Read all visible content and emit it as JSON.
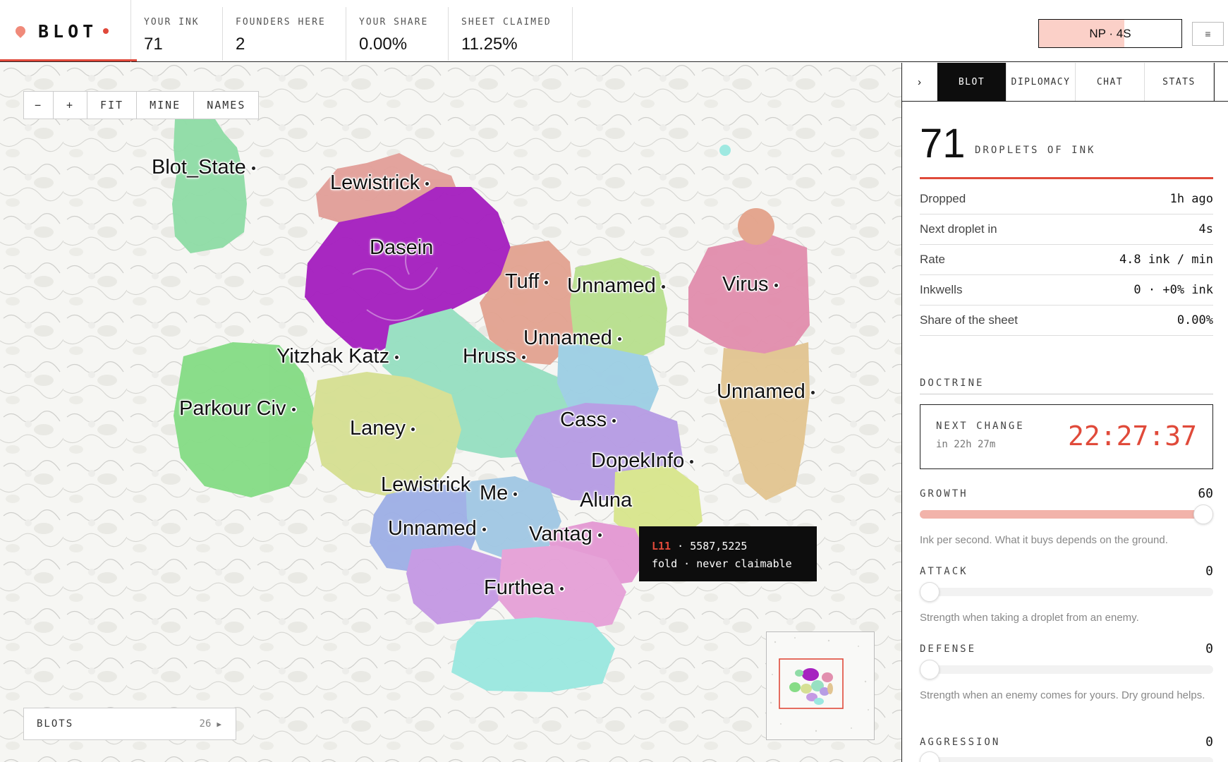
{
  "app": {
    "name": "BLOT"
  },
  "stats": [
    {
      "label": "YOUR INK",
      "value": "71"
    },
    {
      "label": "FOUNDERS HERE",
      "value": "2"
    },
    {
      "label": "YOUR SHARE",
      "value": "0.00%"
    },
    {
      "label": "SHEET CLAIMED",
      "value": "11.25%"
    }
  ],
  "np_button": {
    "label": "NP · 4S",
    "progress": 0.6
  },
  "menu_icon": "hamburger-icon",
  "map": {
    "controls": [
      "−",
      "+",
      "FIT",
      "MINE",
      "NAMES"
    ],
    "territories": [
      {
        "name": "Blot_State",
        "color": "#8fdca6"
      },
      {
        "name": "Lewistrick",
        "color": "#e2a09a"
      },
      {
        "name": "Dasein",
        "color": "#a622c0"
      },
      {
        "name": "Tuff",
        "color": "#e3a492"
      },
      {
        "name": "Unnamed",
        "color": "#b9e08f"
      },
      {
        "name": "Virus",
        "color": "#e28fae"
      },
      {
        "name": "Unnamed",
        "color": "#9ecfe4"
      },
      {
        "name": "Hruss",
        "color": "#98e0c2"
      },
      {
        "name": "Yitzhak Katz",
        "color": "#98e0c2"
      },
      {
        "name": "Unnamed",
        "color": "#e2c592"
      },
      {
        "name": "Parkour Civ",
        "color": "#86dc86"
      },
      {
        "name": "Laney",
        "color": "#d6e094"
      },
      {
        "name": "Cass",
        "color": "#b79de4"
      },
      {
        "name": "DopekInfo",
        "color": "#d9e68e"
      },
      {
        "name": "Lewistrick",
        "color": "#9fb0e6"
      },
      {
        "name": "Me",
        "color": "#a2c8e4"
      },
      {
        "name": "Aluna",
        "color": "#e49ad4"
      },
      {
        "name": "Unnamed",
        "color": "#c59ae4"
      },
      {
        "name": "Vantag",
        "color": "#e6a2d8"
      },
      {
        "name": "Furthea",
        "color": "#9ce8e0"
      }
    ],
    "tooltip": {
      "code": "L11",
      "coords": "5587,5225",
      "terrain": "fold",
      "status": "never claimable"
    },
    "blots": {
      "label": "BLOTS",
      "count": "26"
    }
  },
  "side": {
    "tabs": [
      "BLOT",
      "DIPLOMACY",
      "CHAT",
      "STATS"
    ],
    "active_tab": "BLOT",
    "ink": {
      "value": "71",
      "unit": "DROPLETS OF INK"
    },
    "rows": [
      {
        "key": "Dropped",
        "value": "1h ago"
      },
      {
        "key": "Next droplet in",
        "value": "4s"
      },
      {
        "key": "Rate",
        "value": "4.8 ink / min"
      },
      {
        "key": "Inkwells",
        "value": "0 · +0% ink"
      },
      {
        "key": "Share of the sheet",
        "value": "0.00%"
      }
    ],
    "doctrine": {
      "label": "DOCTRINE",
      "next_change_label": "NEXT CHANGE",
      "next_change_sub": "in 22h 27m",
      "timer": "22:27:37"
    },
    "sliders": [
      {
        "label": "GROWTH",
        "value": "60",
        "level": 1.0,
        "hint": "Ink per second. What it buys depends on the ground."
      },
      {
        "label": "ATTACK",
        "value": "0",
        "level": 0,
        "hint": "Strength when taking a droplet from an enemy."
      },
      {
        "label": "DEFENSE",
        "value": "0",
        "level": 0,
        "hint": "Strength when an enemy comes for yours. Dry ground helps."
      },
      {
        "label": "AGGRESSION",
        "value": "0",
        "level": 0,
        "hint": ""
      }
    ]
  },
  "colors": {
    "accent": "#e04a3a",
    "accent_light": "#fbd0c8",
    "ink": "#111111"
  }
}
